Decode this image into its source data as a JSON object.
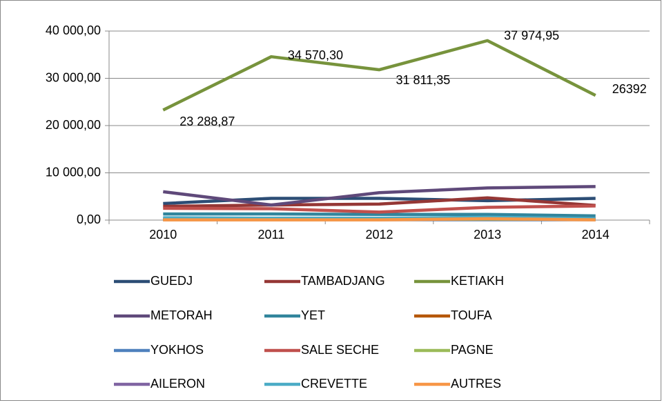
{
  "chart_data": {
    "type": "line",
    "categories": [
      "2010",
      "2011",
      "2012",
      "2013",
      "2014"
    ],
    "ylim": [
      0,
      40000
    ],
    "yticks": [
      {
        "value": 0,
        "label": "0,00"
      },
      {
        "value": 10000,
        "label": "10 000,00"
      },
      {
        "value": 20000,
        "label": "20 000,00"
      },
      {
        "value": 30000,
        "label": "30 000,00"
      },
      {
        "value": 40000,
        "label": "40 000,00"
      }
    ],
    "grid": true,
    "legend": "bottom",
    "series": [
      {
        "name": "GUEDJ",
        "color": "#2C4D75",
        "values": [
          3500,
          4600,
          4600,
          4100,
          4600
        ]
      },
      {
        "name": "TAMBADJANG",
        "color": "#953735",
        "values": [
          2900,
          3200,
          3400,
          4700,
          3100
        ]
      },
      {
        "name": "KETIAKH",
        "color": "#77933C",
        "values": [
          23288.87,
          34570.3,
          31811.35,
          37974.95,
          26392
        ],
        "value_labels": [
          "23 288,87",
          "34 570,30",
          "31 811,35",
          "37 974,95",
          "26392"
        ]
      },
      {
        "name": "METORAH",
        "color": "#5F497A",
        "values": [
          6000,
          3200,
          5800,
          6800,
          7100
        ]
      },
      {
        "name": "YET",
        "color": "#31859C",
        "values": [
          1300,
          1300,
          1200,
          1200,
          900
        ]
      },
      {
        "name": "TOUFA",
        "color": "#B65708",
        "values": [
          100,
          100,
          100,
          100,
          100
        ]
      },
      {
        "name": "YOKHOS",
        "color": "#4F81BD",
        "values": [
          100,
          100,
          100,
          100,
          100
        ]
      },
      {
        "name": "SALE SECHE",
        "color": "#C0504D",
        "values": [
          2500,
          2400,
          1700,
          2700,
          3000
        ]
      },
      {
        "name": "PAGNE",
        "color": "#9BBB59",
        "values": [
          200,
          200,
          200,
          200,
          200
        ]
      },
      {
        "name": "AILERON",
        "color": "#8064A2",
        "values": [
          300,
          300,
          300,
          300,
          300
        ]
      },
      {
        "name": "CREVETTE",
        "color": "#4BACC6",
        "values": [
          500,
          400,
          400,
          600,
          300
        ]
      },
      {
        "name": "AUTRES",
        "color": "#F79646",
        "values": [
          50,
          50,
          50,
          300,
          50
        ]
      }
    ]
  }
}
